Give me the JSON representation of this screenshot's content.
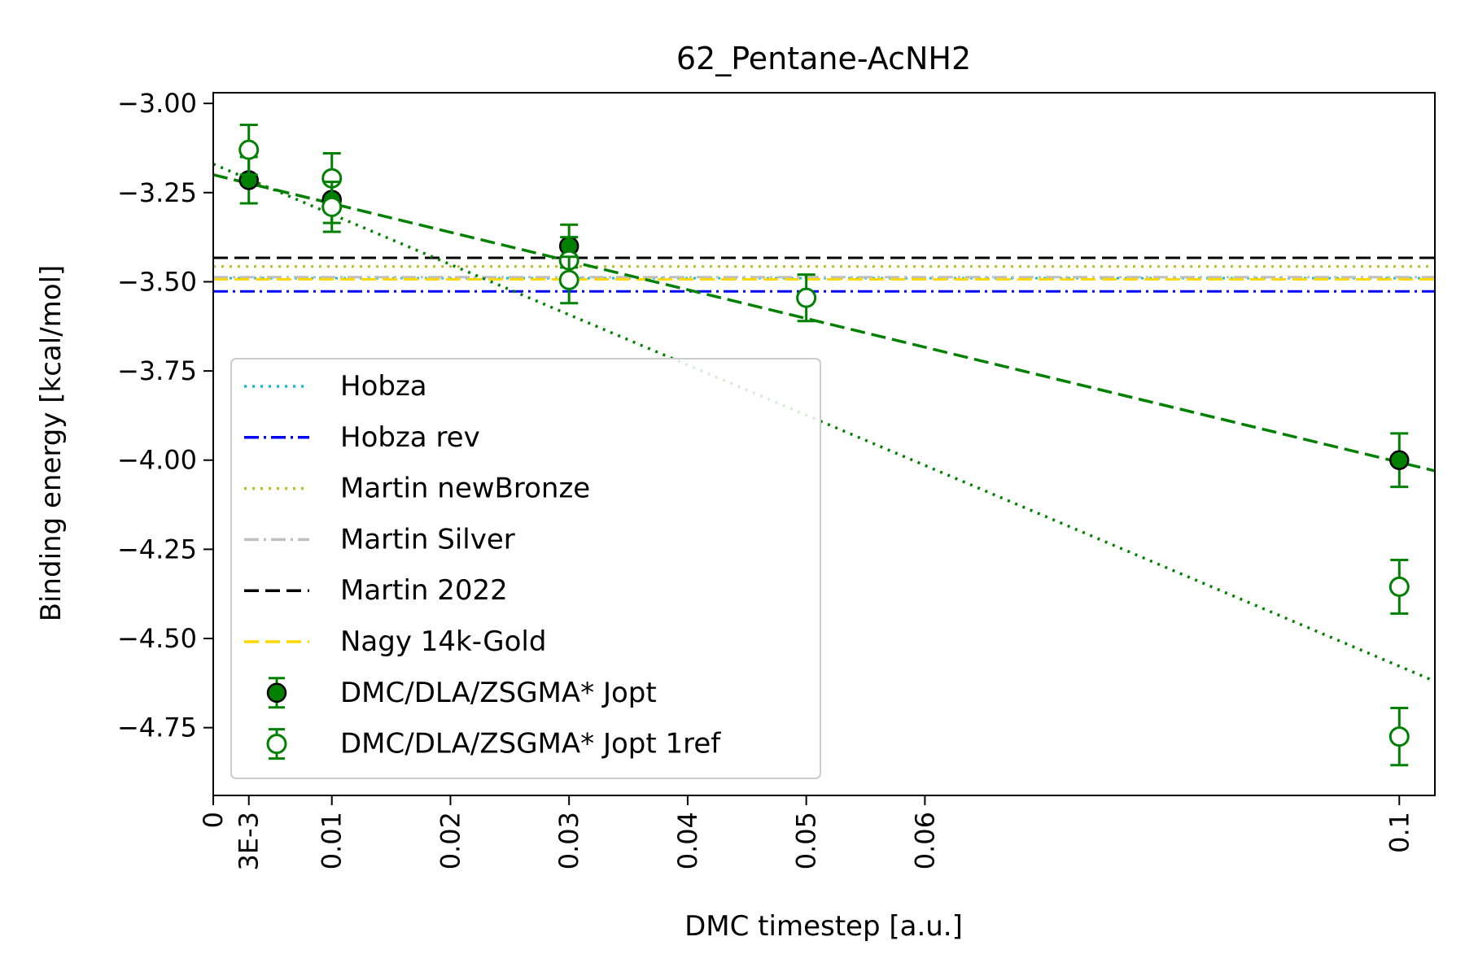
{
  "chart_data": {
    "type": "scatter",
    "title": "62_Pentane-AcNH2",
    "xlabel": "DMC timestep [a.u.]",
    "ylabel": "Binding energy [kcal/mol]",
    "xlim": [
      0,
      0.103
    ],
    "ylim": [
      -4.94,
      -2.97
    ],
    "grid": false,
    "legend_position": "lower-left",
    "x_ticks": [
      {
        "value": 0,
        "label": "0"
      },
      {
        "value": 0.003,
        "label": "3E-3"
      },
      {
        "value": 0.01,
        "label": "0.01"
      },
      {
        "value": 0.02,
        "label": "0.02"
      },
      {
        "value": 0.03,
        "label": "0.03"
      },
      {
        "value": 0.04,
        "label": "0.04"
      },
      {
        "value": 0.05,
        "label": "0.05"
      },
      {
        "value": 0.06,
        "label": "0.06"
      },
      {
        "value": 0.1,
        "label": "0.1"
      }
    ],
    "y_ticks": [
      {
        "value": -3.0,
        "label": "−3.00"
      },
      {
        "value": -3.25,
        "label": "−3.25"
      },
      {
        "value": -3.5,
        "label": "−3.50"
      },
      {
        "value": -3.75,
        "label": "−3.75"
      },
      {
        "value": -4.0,
        "label": "−4.00"
      },
      {
        "value": -4.25,
        "label": "−4.25"
      },
      {
        "value": -4.5,
        "label": "−4.50"
      },
      {
        "value": -4.75,
        "label": "−4.75"
      }
    ],
    "reference_lines": [
      {
        "name": "Hobza",
        "y": -3.49,
        "color": "#17becf",
        "dash": "dotted"
      },
      {
        "name": "Hobza rev",
        "y": -3.527,
        "color": "#0000ff",
        "dash": "dashdot"
      },
      {
        "name": "Martin newBronze",
        "y": -3.457,
        "color": "#bcbd22",
        "dash": "dotted"
      },
      {
        "name": "Martin Silver",
        "y": -3.487,
        "color": "#bfbfbf",
        "dash": "dashdot"
      },
      {
        "name": "Martin 2022",
        "y": -3.433,
        "color": "#000000",
        "dash": "dashed"
      },
      {
        "name": "Nagy 14k-Gold",
        "y": -3.493,
        "color": "#ffd700",
        "dash": "dashed"
      }
    ],
    "series": [
      {
        "name": "DMC/DLA/ZSGMA* Jopt",
        "marker": "filled",
        "color": "#008000",
        "points": [
          {
            "x": 0.003,
            "y": -3.215,
            "err": 0.065
          },
          {
            "x": 0.01,
            "y": -3.27,
            "err": 0.065
          },
          {
            "x": 0.03,
            "y": -3.4,
            "err": 0.06
          },
          {
            "x": 0.1,
            "y": -4.0,
            "err": 0.075
          }
        ]
      },
      {
        "name": "DMC/DLA/ZSGMA* Jopt 1ref",
        "marker": "open",
        "color": "#008000",
        "points": [
          {
            "x": 0.003,
            "y": -3.13,
            "err": 0.07
          },
          {
            "x": 0.01,
            "y": -3.21,
            "err": 0.07
          },
          {
            "x": 0.01,
            "y": -3.29,
            "err": 0.07
          },
          {
            "x": 0.03,
            "y": -3.44,
            "err": 0.065
          },
          {
            "x": 0.03,
            "y": -3.495,
            "err": 0.065
          },
          {
            "x": 0.05,
            "y": -3.545,
            "err": 0.065
          },
          {
            "x": 0.1,
            "y": -4.355,
            "err": 0.075
          },
          {
            "x": 0.1,
            "y": -4.775,
            "err": 0.08
          }
        ]
      }
    ],
    "fit_lines": [
      {
        "style": "dashed",
        "color": "#008000",
        "x": [
          0,
          0.103
        ],
        "y": [
          -3.2,
          -4.03
        ]
      },
      {
        "style": "dotted",
        "color": "#008000",
        "x": [
          0,
          0.103
        ],
        "y": [
          -3.17,
          -4.62
        ]
      }
    ]
  }
}
